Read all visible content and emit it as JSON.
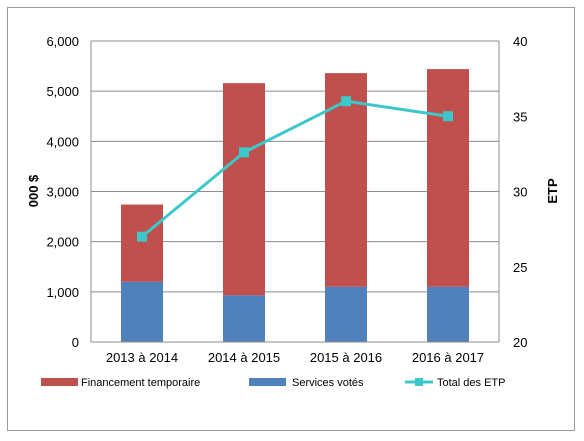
{
  "chart_data": {
    "type": "bar",
    "stacked": true,
    "categories": [
      "2013 à 2014",
      "2014 à 2015",
      "2015 à 2016",
      "2016 à 2017"
    ],
    "series": [
      {
        "name": "Services votés",
        "type": "bar",
        "axis": "left",
        "color": "#4F81BD",
        "values": [
          1200,
          930,
          1100,
          1100
        ]
      },
      {
        "name": "Financement temporaire",
        "type": "bar",
        "axis": "left",
        "color": "#C0504D",
        "values": [
          1540,
          4230,
          4260,
          4340
        ]
      },
      {
        "name": "Total des ETP",
        "type": "line",
        "axis": "right",
        "color": "#3CC8C8",
        "values": [
          27,
          32.6,
          36,
          35
        ]
      }
    ],
    "ylabel": "000 $",
    "y2label": "ETP",
    "ylim": [
      0,
      6000
    ],
    "y2lim": [
      20,
      40
    ],
    "yticks": [
      "0",
      "1,000",
      "2,000",
      "3,000",
      "4,000",
      "5,000",
      "6,000"
    ],
    "y2ticks": [
      "20",
      "25",
      "30",
      "35",
      "40"
    ],
    "grid": true,
    "legend_position": "bottom"
  }
}
